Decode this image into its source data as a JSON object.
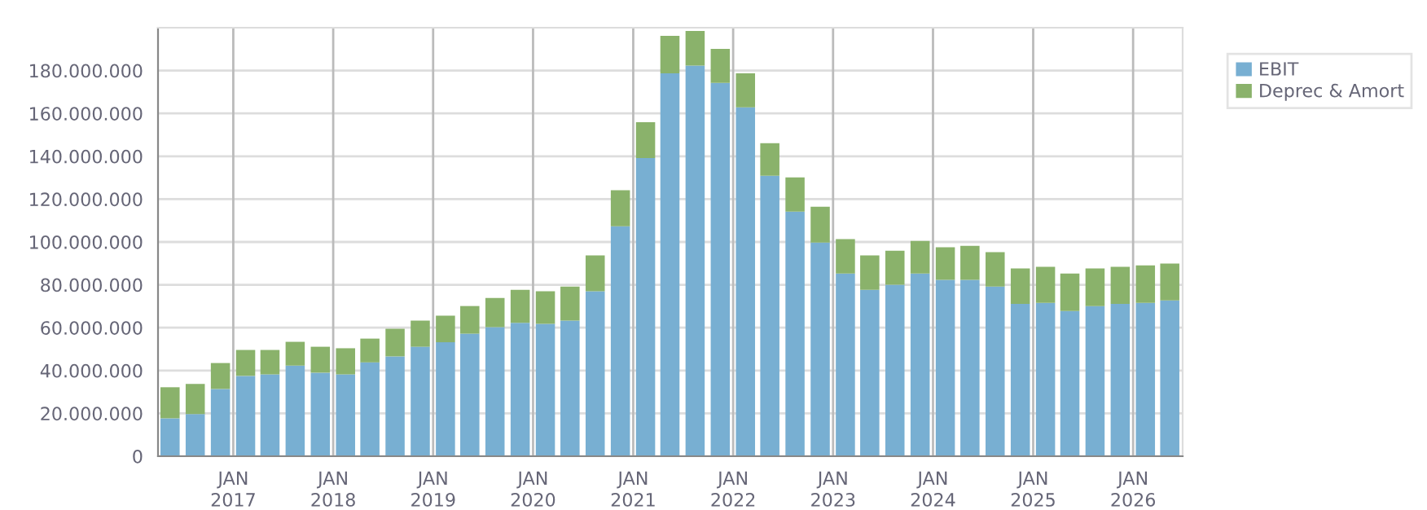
{
  "chart_data": {
    "type": "bar",
    "stacked": true,
    "x": [
      "2016-05-15",
      "2016-08-15",
      "2016-11-15",
      "2017-02-15",
      "2017-05-15",
      "2017-08-15",
      "2017-11-15",
      "2018-02-15",
      "2018-05-15",
      "2018-08-15",
      "2018-11-15",
      "2019-02-15",
      "2019-05-15",
      "2019-08-15",
      "2019-11-15",
      "2020-02-15",
      "2020-05-15",
      "2020-08-15",
      "2020-11-15",
      "2021-02-15",
      "2021-05-15",
      "2021-08-15",
      "2021-11-15",
      "2022-02-15",
      "2022-05-15",
      "2022-08-15",
      "2022-11-15",
      "2023-02-15",
      "2023-05-15",
      "2023-08-15",
      "2023-11-15",
      "2024-02-15",
      "2024-05-15",
      "2024-08-15",
      "2024-11-15",
      "2025-02-15",
      "2025-05-15",
      "2025-08-15",
      "2025-11-15",
      "2026-02-15",
      "2026-05-15"
    ],
    "series": [
      {
        "name": "EBIT",
        "color": "#78afd2",
        "values": [
          17700000,
          19700000,
          31400000,
          37500000,
          38200000,
          42300000,
          39000000,
          38200000,
          43800000,
          46600000,
          51100000,
          53200000,
          57200000,
          60300000,
          62300000,
          61800000,
          63300000,
          77000000,
          107300000,
          139200000,
          178700000,
          182300000,
          174200000,
          162800000,
          130900000,
          114200000,
          99700000,
          85300000,
          77700000,
          80000000,
          85300000,
          82300000,
          82300000,
          79200000,
          71100000,
          71600000,
          67800000,
          70100000,
          71100000,
          71600000,
          72700000
        ]
      },
      {
        "name": "Deprec & Amort",
        "color": "#8ab26b",
        "values": [
          14500000,
          14000000,
          12100000,
          12100000,
          11400000,
          11100000,
          12100000,
          12200000,
          11100000,
          12900000,
          12200000,
          12400000,
          12900000,
          13600000,
          15400000,
          15200000,
          15900000,
          16700000,
          16800000,
          16700000,
          17500000,
          16200000,
          15900000,
          15900000,
          15200000,
          15900000,
          16700000,
          16000000,
          16000000,
          15900000,
          15200000,
          15200000,
          15900000,
          16000000,
          16500000,
          16800000,
          17500000,
          17500000,
          17300000,
          17500000,
          17200000
        ]
      }
    ],
    "xlim": [
      "2016-04-01",
      "2026-07-01"
    ],
    "xticks": [
      {
        "value": "2017-01-01",
        "label": "JAN\n2017"
      },
      {
        "value": "2018-01-01",
        "label": "JAN\n2018"
      },
      {
        "value": "2019-01-01",
        "label": "JAN\n2019"
      },
      {
        "value": "2020-01-01",
        "label": "JAN\n2020"
      },
      {
        "value": "2021-01-01",
        "label": "JAN\n2021"
      },
      {
        "value": "2022-01-01",
        "label": "JAN\n2022"
      },
      {
        "value": "2023-01-01",
        "label": "JAN\n2023"
      },
      {
        "value": "2024-01-01",
        "label": "JAN\n2024"
      },
      {
        "value": "2025-01-01",
        "label": "JAN\n2025"
      },
      {
        "value": "2026-01-01",
        "label": "JAN\n2026"
      }
    ],
    "ylim": [
      0,
      200000000
    ],
    "yticks": [
      {
        "value": 0,
        "label": "0"
      },
      {
        "value": 20000000,
        "label": "20.000.000"
      },
      {
        "value": 40000000,
        "label": "40.000.000"
      },
      {
        "value": 60000000,
        "label": "60.000.000"
      },
      {
        "value": 80000000,
        "label": "80.000.000"
      },
      {
        "value": 100000000,
        "label": "100.000.000"
      },
      {
        "value": 120000000,
        "label": "120.000.000"
      },
      {
        "value": 140000000,
        "label": "140.000.000"
      },
      {
        "value": 160000000,
        "label": "160.000.000"
      },
      {
        "value": 180000000,
        "label": "180.000.000"
      }
    ],
    "grid": true,
    "legend": "top right"
  }
}
